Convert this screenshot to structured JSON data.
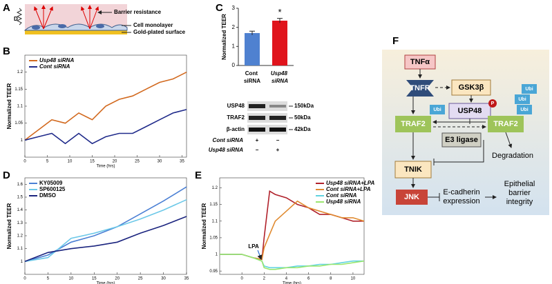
{
  "panel_labels": [
    "A",
    "B",
    "C",
    "D",
    "E",
    "F"
  ],
  "panel_a": {
    "barrier": "Barrier resistance",
    "monolayer": "Cell monolayer",
    "surface": "Gold-plated surface",
    "d": "D"
  },
  "chart_data": [
    {
      "type": "line",
      "x": [
        0,
        3,
        6,
        9,
        12,
        15,
        18,
        21,
        24,
        27,
        30,
        33,
        36
      ],
      "xlim": [
        0,
        36
      ],
      "xticks": [
        0,
        5,
        10,
        15,
        20,
        25,
        30,
        35
      ],
      "ylim": [
        0.95,
        1.25
      ],
      "yticks": [
        1,
        1.05,
        1.1,
        1.15,
        1.2
      ],
      "ylabel": "Normalized TEER",
      "xlabel": "Time (hrs)",
      "legend": "upper left",
      "series": [
        {
          "name": "Usp48 siRNA",
          "color": "#d2691e",
          "values": [
            1.0,
            1.03,
            1.06,
            1.05,
            1.08,
            1.06,
            1.1,
            1.12,
            1.13,
            1.15,
            1.17,
            1.18,
            1.2
          ]
        },
        {
          "name": "Cont siRNA",
          "color": "#1f2a8a",
          "values": [
            1.0,
            1.01,
            1.02,
            0.99,
            1.02,
            0.99,
            1.01,
            1.02,
            1.02,
            1.04,
            1.06,
            1.08,
            1.09
          ]
        }
      ]
    },
    {
      "type": "bar",
      "categories": [
        "Cont siRNA",
        "Usp48 siRNA"
      ],
      "values": [
        1.7,
        2.35
      ],
      "errors": [
        0.1,
        0.12
      ],
      "colors": [
        "#4f81d0",
        "#e0141c"
      ],
      "ylim": [
        0,
        3
      ],
      "yticks": [
        0,
        1,
        2,
        3
      ],
      "ylabel": "Normalized TEER",
      "annotation": "*"
    },
    {
      "type": "line",
      "x": [
        0,
        5,
        10,
        15,
        20,
        25,
        30,
        35
      ],
      "xlim": [
        0,
        35
      ],
      "xticks": [
        0,
        5,
        10,
        15,
        20,
        25,
        30,
        35
      ],
      "ylim": [
        0.9,
        1.65
      ],
      "yticks": [
        1,
        1.1,
        1.2,
        1.3,
        1.4,
        1.5,
        1.6
      ],
      "ylabel": "Normalized TEER",
      "xlabel": "Time (hrs)",
      "legend": "upper left",
      "series": [
        {
          "name": "KY05009",
          "color": "#4a7fd4",
          "values": [
            1.0,
            1.05,
            1.15,
            1.2,
            1.27,
            1.37,
            1.47,
            1.58
          ]
        },
        {
          "name": "SP600125",
          "color": "#6cc8e8",
          "values": [
            1.0,
            1.03,
            1.18,
            1.22,
            1.27,
            1.33,
            1.4,
            1.48
          ]
        },
        {
          "name": "DMSO",
          "color": "#1a237e",
          "values": [
            1.0,
            1.07,
            1.1,
            1.12,
            1.15,
            1.22,
            1.28,
            1.35
          ]
        }
      ]
    },
    {
      "type": "line",
      "x": [
        -2,
        -1,
        0,
        1,
        1.8,
        2,
        2.5,
        3,
        4,
        5,
        6,
        7,
        8,
        9,
        10,
        11
      ],
      "xlim": [
        -2,
        11
      ],
      "xticks": [
        0,
        2,
        4,
        6,
        8,
        10
      ],
      "ylim": [
        0.94,
        1.23
      ],
      "yticks": [
        0.95,
        1,
        1.05,
        1.1,
        1.15,
        1.2
      ],
      "ylabel": "Normalized TEER",
      "xlabel": "Time (hrs)",
      "legend": "upper right",
      "annotation": "LPA",
      "series": [
        {
          "name": "Usp48 siRNA+LPA",
          "color": "#b0202a",
          "values": [
            1.0,
            1.0,
            1.0,
            0.99,
            0.985,
            1.05,
            1.19,
            1.18,
            1.17,
            1.15,
            1.14,
            1.12,
            1.12,
            1.11,
            1.1,
            1.1
          ]
        },
        {
          "name": "Cont siRNA+LPA",
          "color": "#e08a30",
          "values": [
            1.0,
            1.0,
            1.0,
            0.99,
            0.985,
            1.02,
            1.06,
            1.1,
            1.13,
            1.16,
            1.14,
            1.13,
            1.12,
            1.11,
            1.11,
            1.1
          ]
        },
        {
          "name": "Cont siRNA",
          "color": "#5fd3e0",
          "values": [
            1.0,
            1.0,
            1.0,
            0.99,
            0.98,
            0.965,
            0.96,
            0.96,
            0.96,
            0.965,
            0.965,
            0.97,
            0.97,
            0.975,
            0.98,
            0.98
          ]
        },
        {
          "name": "Usp48 siRNA",
          "color": "#9ae66e",
          "values": [
            1.0,
            1.0,
            1.0,
            0.99,
            0.98,
            0.96,
            0.955,
            0.955,
            0.96,
            0.96,
            0.965,
            0.965,
            0.97,
            0.97,
            0.975,
            0.98
          ]
        }
      ]
    }
  ],
  "blot": {
    "proteins": [
      "USP48",
      "TRAF2",
      "β-actin"
    ],
    "sizes": [
      "150kDa",
      "50kDa",
      "42kDa"
    ],
    "rows": [
      [
        "Cont siRNA",
        "+",
        "−"
      ],
      [
        "Usp48 siRNA",
        "−",
        "+"
      ]
    ]
  },
  "pathway": {
    "tnfa": "TNFα",
    "tnfr": "TNFR",
    "gsk": "GSK3β",
    "usp48": "USP48",
    "p": "P",
    "traf2_left": "TRAF2",
    "traf2_right": "TRAF2",
    "ubi": [
      "Ubi",
      "Ubi",
      "Ubi",
      "Ubi"
    ],
    "e3": "E3 ligase",
    "degradation": "Degradation",
    "tnik": "TNIK",
    "jnk": "JNK",
    "ecad": [
      "E-cadherin",
      "expression"
    ],
    "barrier": [
      "Epithelial",
      "barrier",
      "integrity"
    ]
  }
}
